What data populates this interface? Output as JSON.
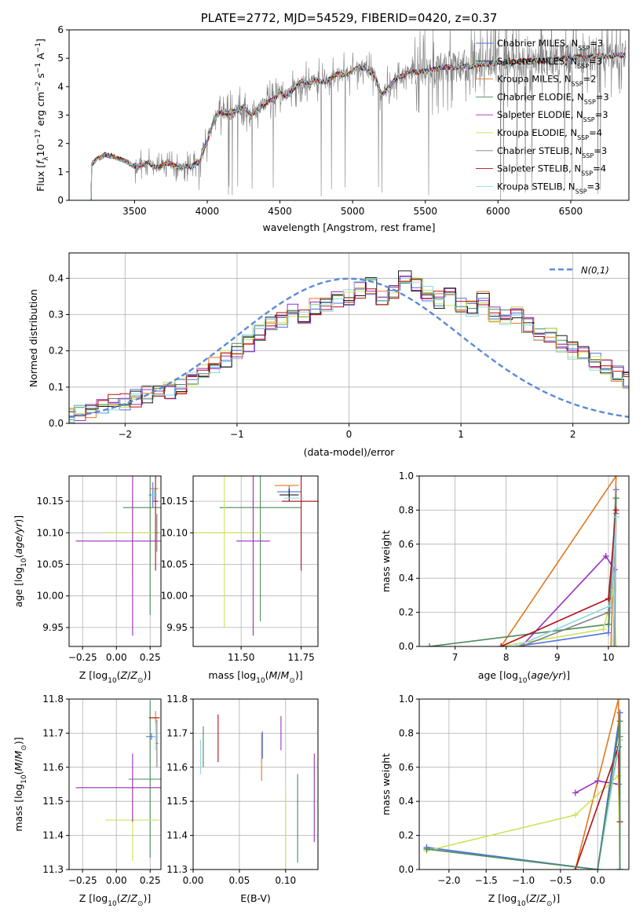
{
  "colors": [
    "#4c72e6",
    "#1c1c1c",
    "#e1781e",
    "#4d8a5a",
    "#9a2fbf",
    "#cde35a",
    "#7f7f7f",
    "#b0101a",
    "#8fd6e0"
  ],
  "chart_data": [
    {
      "id": "spectrum",
      "type": "line",
      "title": "PLATE=2772, MJD=54529, FIBERID=0420, z=0.37",
      "xlabel": "wavelength [Angstrom, rest frame]",
      "ylabel": "Flux [f_λ 10^-17 erg cm^-2 s^-1 A^-1]",
      "xlim": [
        3050,
        6900
      ],
      "ylim": [
        0,
        6
      ],
      "xticks": [
        3500,
        4000,
        4500,
        5000,
        5500,
        6000,
        6500
      ],
      "yticks": [
        0,
        1,
        2,
        3,
        4,
        5,
        6
      ],
      "continuum": {
        "x": [
          3200,
          3240,
          3300,
          3350,
          3400,
          3450,
          3500,
          3550,
          3600,
          3650,
          3700,
          3750,
          3800,
          3850,
          3900,
          3950,
          4000,
          4050,
          4100,
          4150,
          4200,
          4250,
          4300,
          4350,
          4400,
          4450,
          4500,
          4550,
          4600,
          4650,
          4700,
          4750,
          4800,
          4850,
          4900,
          4950,
          5000,
          5050,
          5100,
          5150,
          5200,
          5250,
          5300,
          5350,
          5400,
          5450,
          5500,
          5550,
          5600,
          5650,
          5700,
          5750,
          5800,
          5850,
          5900,
          5950,
          6000,
          6050,
          6100,
          6150,
          6200,
          6250,
          6300,
          6350,
          6400,
          6450,
          6500,
          6550,
          6600,
          6650,
          6700,
          6750,
          6800,
          6850
        ],
        "y": [
          1.25,
          1.45,
          1.6,
          1.55,
          1.45,
          1.35,
          1.2,
          1.25,
          1.3,
          1.15,
          1.25,
          1.3,
          1.15,
          1.2,
          1.2,
          1.4,
          2.1,
          2.9,
          3.1,
          3.05,
          3.15,
          3.3,
          3.0,
          3.2,
          3.4,
          3.55,
          3.8,
          3.65,
          3.95,
          4.2,
          4.1,
          4.25,
          4.15,
          4.3,
          4.45,
          4.4,
          4.55,
          4.7,
          4.6,
          4.4,
          3.7,
          4.0,
          4.3,
          4.4,
          4.55,
          4.5,
          4.55,
          4.6,
          4.65,
          4.7,
          4.65,
          4.75,
          4.7,
          4.75,
          4.8,
          4.8,
          4.85,
          4.8,
          4.85,
          4.9,
          4.9,
          4.95,
          4.9,
          4.95,
          4.95,
          5.0,
          5.0,
          5.05,
          5.0,
          5.05,
          5.1,
          5.05,
          5.1,
          5.1
        ]
      },
      "legend": [
        {
          "label": "Chabrier MILES, N",
          "sub": "SSP",
          "tail": "=3"
        },
        {
          "label": "Salpeter MILES, N",
          "sub": "SSP",
          "tail": "=3"
        },
        {
          "label": "Kroupa MILES, N",
          "sub": "SSP",
          "tail": "=2"
        },
        {
          "label": "Chabrier ELODIE, N",
          "sub": "SSP",
          "tail": "=3"
        },
        {
          "label": "Salpeter ELODIE, N",
          "sub": "SSP",
          "tail": "=3"
        },
        {
          "label": "Kroupa ELODIE, N",
          "sub": "SSP",
          "tail": "=4"
        },
        {
          "label": "Chabrier STELIB, N",
          "sub": "SSP",
          "tail": "=3"
        },
        {
          "label": "Salpeter STELIB, N",
          "sub": "SSP",
          "tail": "=4"
        },
        {
          "label": "Kroupa STELIB, N",
          "sub": "SSP",
          "tail": "=3"
        }
      ],
      "legend_colors": [
        "#4c72e6",
        "#1c1c1c",
        "#e1781e",
        "#4d8a5a",
        "#9a2fbf",
        "#cde35a",
        "#7f7f7f",
        "#b0101a",
        "#8fd6e0"
      ]
    },
    {
      "id": "residuals",
      "type": "histogram",
      "xlabel": "(data-model)/error",
      "ylabel": "Normed distribution",
      "xlim": [
        -2.5,
        2.5
      ],
      "ylim": [
        0,
        0.47
      ],
      "xticks": [
        -2,
        -1,
        0,
        1,
        2
      ],
      "xtick_labels": [
        "−2",
        "−1",
        "0",
        "1",
        "2"
      ],
      "yticks": [
        0,
        0.1,
        0.2,
        0.3,
        0.4
      ],
      "ytick_labels": [
        "0.0",
        "0.1",
        "0.2",
        "0.3",
        "0.4"
      ],
      "bin_width": 0.1,
      "base_hist": [
        0.02,
        0.03,
        0.04,
        0.05,
        0.055,
        0.06,
        0.07,
        0.08,
        0.085,
        0.09,
        0.1,
        0.12,
        0.14,
        0.16,
        0.18,
        0.2,
        0.22,
        0.25,
        0.27,
        0.29,
        0.31,
        0.3,
        0.32,
        0.33,
        0.34,
        0.35,
        0.37,
        0.38,
        0.35,
        0.36,
        0.4,
        0.38,
        0.36,
        0.34,
        0.35,
        0.33,
        0.32,
        0.34,
        0.3,
        0.29,
        0.3,
        0.27,
        0.25,
        0.24,
        0.22,
        0.2,
        0.19,
        0.17,
        0.16,
        0.14,
        0.12,
        0.11,
        0.1,
        0.09,
        0.08,
        0.075,
        0.07,
        0.065,
        0.06,
        0.055,
        0.05,
        0.045,
        0.04,
        0.03
      ],
      "legend_label": "N(0,1)",
      "gauss_color": "#5b8ad8"
    },
    {
      "id": "age_vs_Z",
      "type": "errorbar",
      "xlabel": "Z [log10(Z/Z⊙)]",
      "ylabel": "age  [log10(age/yr)]",
      "xlim": [
        -0.35,
        0.33
      ],
      "ylim": [
        9.92,
        10.19
      ],
      "xticks": [
        -0.25,
        0,
        0.25
      ],
      "xtick_labels": [
        "−0.25",
        "0.00",
        "0.25"
      ],
      "yticks": [
        9.95,
        10.0,
        10.05,
        10.1,
        10.15
      ],
      "ytick_labels": [
        "9.95",
        "10.00",
        "10.05",
        "10.10",
        "10.15"
      ],
      "points": [
        {
          "x": 0.27,
          "y": 10.16,
          "xe": 0.03,
          "ye": 0.02,
          "c": 0
        },
        {
          "x": 0.25,
          "y": 10.14,
          "xe": 0.2,
          "ye": 0.17,
          "c": 3
        },
        {
          "x": 0.28,
          "y": 10.17,
          "xe": 0.03,
          "ye": 0.0,
          "c": 2
        },
        {
          "x": 0.12,
          "y": 10.1,
          "xe": 0.2,
          "ye": 0.07,
          "c": 5
        },
        {
          "x": 0.12,
          "y": 10.087,
          "xe": 0.42,
          "ye": 0.15,
          "c": 4
        },
        {
          "x": 0.29,
          "y": 10.15,
          "xe": 0.02,
          "ye": 0.11,
          "c": 7
        },
        {
          "x": 0.3,
          "y": 10.1,
          "xe": 0.01,
          "ye": 0.03,
          "c": 6
        },
        {
          "x": 0.28,
          "y": 10.16,
          "xe": 0.02,
          "ye": 0.01,
          "c": 8
        }
      ]
    },
    {
      "id": "age_vs_mass",
      "type": "errorbar",
      "xlabel": "mass [log10(M/M⊙)]",
      "ylabel": "",
      "xlim": [
        11.3,
        11.82
      ],
      "ylim": [
        9.92,
        10.19
      ],
      "xticks": [
        11.5,
        11.75
      ],
      "xtick_labels": [
        "11.50",
        "11.75"
      ],
      "yticks": [
        9.95,
        10.0,
        10.05,
        10.1,
        10.15
      ],
      "ytick_labels": [
        "9.95",
        "10.00",
        "10.05",
        "10.10",
        "10.15"
      ],
      "points": [
        {
          "x": 11.7,
          "y": 10.165,
          "xe": 0.05,
          "ye": 0.01,
          "c": 0
        },
        {
          "x": 11.58,
          "y": 10.14,
          "xe": 0.17,
          "ye": 0.18,
          "c": 3
        },
        {
          "x": 11.69,
          "y": 10.175,
          "xe": 0.05,
          "ye": 0.0,
          "c": 2
        },
        {
          "x": 11.43,
          "y": 10.1,
          "xe": 0.16,
          "ye": 0.15,
          "c": 5
        },
        {
          "x": 11.55,
          "y": 10.087,
          "xe": 0.07,
          "ye": 0.15,
          "c": 4
        },
        {
          "x": 11.75,
          "y": 10.15,
          "xe": 0.08,
          "ye": 0.11,
          "c": 7
        },
        {
          "x": 11.7,
          "y": 10.16,
          "xe": 0.04,
          "ye": 0.01,
          "c": 1
        },
        {
          "x": 11.72,
          "y": 10.155,
          "xe": 0.04,
          "ye": 0.0,
          "c": 8
        }
      ]
    },
    {
      "id": "weight_vs_age",
      "type": "line",
      "xlabel": "age  [log10(age/yr)]",
      "ylabel": "mass weight",
      "xlim": [
        6.3,
        10.4
      ],
      "ylim": [
        0,
        1
      ],
      "xticks": [
        7,
        8,
        9,
        10
      ],
      "xtick_labels": [
        "7",
        "8",
        "9",
        "10"
      ],
      "yticks": [
        0,
        0.2,
        0.4,
        0.6,
        0.8,
        1.0
      ],
      "ytick_labels": [
        "0.0",
        "0.2",
        "0.4",
        "0.6",
        "0.8",
        "1.0"
      ],
      "series": [
        {
          "c": 0,
          "x": [
            8.2,
            10.0,
            10.15,
            10.12
          ],
          "y": [
            0.0,
            0.08,
            0.92,
            0.0
          ]
        },
        {
          "c": 2,
          "x": [
            7.9,
            10.15,
            10.05
          ],
          "y": [
            0.0,
            1.0,
            0.0
          ]
        },
        {
          "c": 3,
          "x": [
            6.5,
            10.0,
            10.15,
            10.1
          ],
          "y": [
            0.0,
            0.13,
            0.87,
            0.0
          ]
        },
        {
          "c": 4,
          "x": [
            8.3,
            9.95,
            10.12
          ],
          "y": [
            0.0,
            0.53,
            0.45
          ]
        },
        {
          "c": 5,
          "x": [
            7.9,
            9.9,
            10.1,
            10.15
          ],
          "y": [
            0.0,
            0.1,
            0.33,
            0.0
          ]
        },
        {
          "c": 6,
          "x": [
            8.3,
            10.0,
            10.15,
            10.12
          ],
          "y": [
            0.0,
            0.2,
            0.78,
            0.0
          ]
        },
        {
          "c": 7,
          "x": [
            7.9,
            10.0,
            10.15,
            10.1
          ],
          "y": [
            0.0,
            0.28,
            0.8,
            0.0
          ]
        },
        {
          "c": 8,
          "x": [
            8.2,
            10.05,
            10.15,
            10.1
          ],
          "y": [
            0.0,
            0.24,
            0.76,
            0.0
          ]
        }
      ]
    },
    {
      "id": "mass_vs_Z",
      "type": "errorbar",
      "xlabel": "Z [log10(Z/Z⊙)]",
      "ylabel": "mass [log10(M/M⊙)]",
      "xlim": [
        -0.35,
        0.33
      ],
      "ylim": [
        11.3,
        11.8
      ],
      "xticks": [
        -0.25,
        0,
        0.25
      ],
      "xtick_labels": [
        "−0.25",
        "0.00",
        "0.25"
      ],
      "yticks": [
        11.3,
        11.4,
        11.5,
        11.6,
        11.7,
        11.8
      ],
      "ytick_labels": [
        "11.3",
        "11.4",
        "11.5",
        "11.6",
        "11.7",
        "11.8"
      ],
      "points": [
        {
          "x": 0.26,
          "y": 11.69,
          "xe": 0.04,
          "ye": 0.01,
          "c": 0
        },
        {
          "x": 0.25,
          "y": 11.565,
          "xe": 0.16,
          "ye": 0.23,
          "c": 3
        },
        {
          "x": 0.29,
          "y": 11.745,
          "xe": 0.03,
          "ye": 0.02,
          "c": 2
        },
        {
          "x": 0.12,
          "y": 11.445,
          "xe": 0.2,
          "ye": 0.12,
          "c": 5
        },
        {
          "x": 0.12,
          "y": 11.54,
          "xe": 0.42,
          "ye": 0.1,
          "c": 4
        },
        {
          "x": 0.28,
          "y": 11.745,
          "xe": 0.04,
          "ye": 0.0,
          "c": 7
        },
        {
          "x": 0.3,
          "y": 11.67,
          "xe": 0.01,
          "ye": 0.07,
          "c": 6
        },
        {
          "x": 0.29,
          "y": 11.69,
          "xe": 0.02,
          "ye": 0.04,
          "c": 8
        }
      ]
    },
    {
      "id": "mass_vs_ebv",
      "type": "errorbar",
      "xlabel": "E(B-V)",
      "ylabel": "",
      "xlim": [
        0,
        0.135
      ],
      "ylim": [
        11.3,
        11.8
      ],
      "xticks": [
        0,
        0.05,
        0.1
      ],
      "xtick_labels": [
        "0.00",
        "0.05",
        "0.10"
      ],
      "yticks": [
        11.3,
        11.4,
        11.5,
        11.6,
        11.7,
        11.8
      ],
      "ytick_labels": [
        "11.3",
        "11.4",
        "11.5",
        "11.6",
        "11.7",
        "11.8"
      ],
      "points": [
        {
          "x": 0.008,
          "y": 11.63,
          "xe": 0,
          "ye": 0.05,
          "c": 8
        },
        {
          "x": 0.011,
          "y": 11.66,
          "xe": 0,
          "ye": 0.06,
          "c": 3
        },
        {
          "x": 0.027,
          "y": 11.685,
          "xe": 0,
          "ye": 0.07,
          "c": 7
        },
        {
          "x": 0.074,
          "y": 11.63,
          "xe": 0,
          "ye": 0.07,
          "c": 2
        },
        {
          "x": 0.075,
          "y": 11.665,
          "xe": 0,
          "ye": 0.04,
          "c": 0
        },
        {
          "x": 0.095,
          "y": 11.7,
          "xe": 0,
          "ye": 0.05,
          "c": 4
        },
        {
          "x": 0.1,
          "y": 11.42,
          "xe": 0,
          "ye": 0.12,
          "c": 5
        },
        {
          "x": 0.113,
          "y": 11.45,
          "xe": 0,
          "ye": 0.13,
          "c": 3
        },
        {
          "x": 0.131,
          "y": 11.51,
          "xe": 0,
          "ye": 0.13,
          "c": 4
        }
      ]
    },
    {
      "id": "weight_vs_Z",
      "type": "line",
      "xlabel": "Z [log10(Z/Z⊙)]",
      "ylabel": "mass weight",
      "xlim": [
        -2.4,
        0.42
      ],
      "ylim": [
        0,
        1
      ],
      "xticks": [
        -2.0,
        -1.5,
        -1.0,
        -0.5,
        0.0
      ],
      "xtick_labels": [
        "−2.0",
        "−1.5",
        "−1.0",
        "−0.5",
        "0.0"
      ],
      "yticks": [
        0,
        0.2,
        0.4,
        0.6,
        0.8,
        1.0
      ],
      "ytick_labels": [
        "0.0",
        "0.2",
        "0.4",
        "0.6",
        "0.8",
        "1.0"
      ],
      "series": [
        {
          "c": 0,
          "x": [
            -2.3,
            0.0,
            0.3,
            0.3
          ],
          "y": [
            0.13,
            0.0,
            0.92,
            0.0
          ]
        },
        {
          "c": 2,
          "x": [
            -0.3,
            0.28,
            0.3
          ],
          "y": [
            0.0,
            1.0,
            0.0
          ]
        },
        {
          "c": 4,
          "x": [
            -0.3,
            0.0,
            0.28
          ],
          "y": [
            0.45,
            0.52,
            0.5
          ]
        },
        {
          "c": 5,
          "x": [
            -2.3,
            -0.3,
            0.28,
            0.3
          ],
          "y": [
            0.11,
            0.32,
            0.55,
            0.0
          ]
        },
        {
          "c": 6,
          "x": [
            -2.3,
            0.0,
            0.3,
            0.3
          ],
          "y": [
            0.12,
            0.0,
            0.78,
            0.0
          ]
        },
        {
          "c": 7,
          "x": [
            -0.3,
            0.28,
            0.3
          ],
          "y": [
            0.0,
            0.72,
            0.28
          ]
        },
        {
          "c": 8,
          "x": [
            -2.3,
            0.0,
            0.3,
            0.3
          ],
          "y": [
            0.12,
            0.0,
            0.76,
            0.0
          ]
        },
        {
          "c": 3,
          "x": [
            -2.3,
            0.0,
            0.3,
            0.3
          ],
          "y": [
            0.12,
            0.0,
            0.87,
            0.0
          ]
        }
      ]
    }
  ]
}
